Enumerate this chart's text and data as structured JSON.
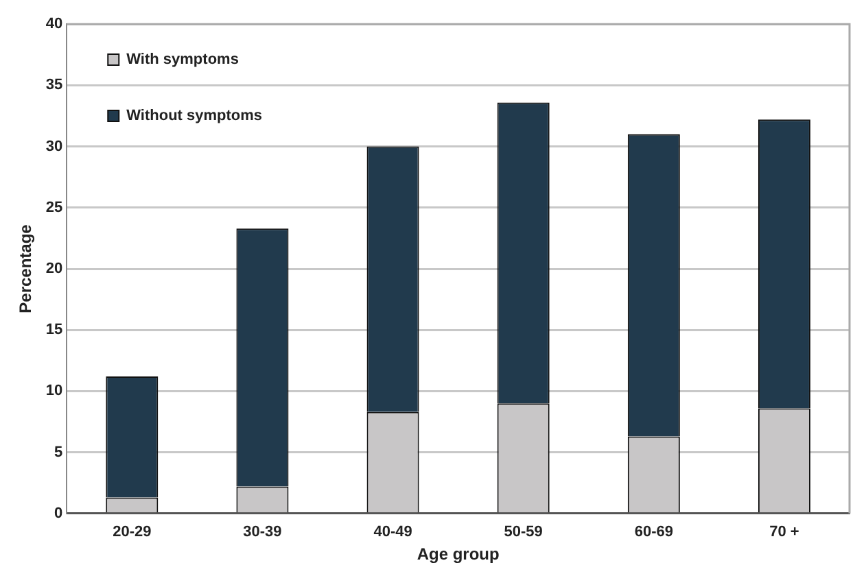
{
  "chart_data": {
    "type": "bar",
    "stacked": true,
    "xlabel": "Age group",
    "ylabel": "Percentage",
    "categories": [
      "20-29",
      "30-39",
      "40-49",
      "50-59",
      "60-69",
      "70 +"
    ],
    "series": [
      {
        "name": "With symptoms",
        "color": "#c8c6c7",
        "values": [
          1.3,
          2.2,
          8.3,
          9.0,
          6.3,
          8.6
        ]
      },
      {
        "name": "Without symptoms",
        "color": "#213a4d",
        "values": [
          9.9,
          21.1,
          21.7,
          24.6,
          24.7,
          23.6
        ]
      }
    ],
    "ylim": [
      0,
      40
    ],
    "yticks": [
      0,
      5,
      10,
      15,
      20,
      25,
      30,
      35,
      40
    ],
    "grid": "y",
    "legend": "top left"
  }
}
